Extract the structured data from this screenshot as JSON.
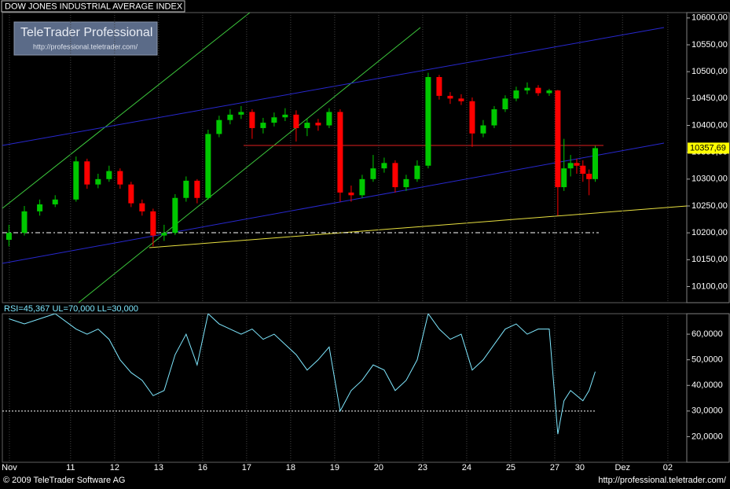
{
  "header": {
    "title": "DOW JONES INDUSTRIAL AVERAGE INDEX"
  },
  "branding": {
    "name": "TeleTrader Professional",
    "url": "http://professional.teletrader.com/"
  },
  "footer": {
    "copyright": "© 2009 TeleTrader Software AG",
    "url": "http://professional.teletrader.com/"
  },
  "chart_data": [
    {
      "type": "candlestick",
      "up_color": "#00c800",
      "down_color": "#ff0000",
      "x": [
        -0.4,
        -0.05,
        0.3,
        0.65,
        1.125,
        1.375,
        1.625,
        1.875,
        2.125,
        2.375,
        2.625,
        2.875,
        3.125,
        3.375,
        3.625,
        3.875,
        4.125,
        4.375,
        4.625,
        4.875,
        5.125,
        5.375,
        5.625,
        5.875,
        6.125,
        6.375,
        6.625,
        6.875,
        7.125,
        7.375,
        7.625,
        7.875,
        8.125,
        8.375,
        8.625,
        8.875,
        9.125,
        9.375,
        9.625,
        9.875,
        10.125,
        10.375,
        10.625,
        10.875,
        11.125,
        11.375,
        11.625,
        11.875,
        12.07,
        12.21,
        12.36,
        12.5,
        12.64,
        12.78,
        12.92
      ],
      "open": [
        10187,
        10200,
        10240,
        10253,
        10262,
        10333,
        10290,
        10300,
        10315,
        10290,
        10255,
        10240,
        10195,
        10200,
        10265,
        10297,
        10265,
        10384,
        10410,
        10420,
        10425,
        10395,
        10405,
        10415,
        10420,
        10395,
        10405,
        10400,
        10425,
        10275,
        10270,
        10300,
        10320,
        10330,
        10285,
        10300,
        10325,
        10490,
        10455,
        10450,
        10445,
        10385,
        10400,
        10430,
        10450,
        10465,
        10470,
        10460,
        10465,
        10285,
        10320,
        10330,
        10325,
        10310,
        10300
      ],
      "high": [
        10215,
        10250,
        10262,
        10270,
        10342,
        10338,
        10310,
        10325,
        10320,
        10295,
        10262,
        10245,
        10215,
        10272,
        10305,
        10300,
        10392,
        10418,
        10430,
        10436,
        10430,
        10414,
        10424,
        10432,
        10428,
        10412,
        10412,
        10432,
        10430,
        10288,
        10308,
        10345,
        10340,
        10335,
        10308,
        10335,
        10498,
        10494,
        10462,
        10458,
        10452,
        10410,
        10436,
        10456,
        10472,
        10480,
        10475,
        10468,
        10466,
        10375,
        10345,
        10338,
        10335,
        10318,
        10362
      ],
      "low": [
        10175,
        10195,
        10232,
        10248,
        10258,
        10282,
        10283,
        10295,
        10282,
        10248,
        10232,
        10175,
        10185,
        10196,
        10258,
        10255,
        10262,
        10378,
        10402,
        10412,
        10375,
        10385,
        10398,
        10408,
        10370,
        10380,
        10390,
        10395,
        10258,
        10258,
        10265,
        10295,
        10312,
        10275,
        10278,
        10295,
        10320,
        10448,
        10440,
        10438,
        10360,
        10378,
        10395,
        10425,
        10445,
        10458,
        10455,
        10455,
        10232,
        10278,
        10305,
        10310,
        10295,
        10270,
        10295
      ],
      "close": [
        10200,
        10240,
        10253,
        10262,
        10333,
        10290,
        10300,
        10315,
        10290,
        10255,
        10240,
        10195,
        10200,
        10265,
        10297,
        10265,
        10384,
        10410,
        10420,
        10425,
        10395,
        10405,
        10415,
        10420,
        10395,
        10405,
        10400,
        10425,
        10275,
        10270,
        10300,
        10320,
        10330,
        10285,
        10300,
        10325,
        10490,
        10455,
        10450,
        10445,
        10385,
        10400,
        10430,
        10450,
        10465,
        10470,
        10460,
        10465,
        10285,
        10320,
        10330,
        10325,
        10310,
        10300,
        10357.69
      ],
      "last_price": {
        "value": 10357.69,
        "label": "10357,69"
      },
      "xlim": [
        -0.55,
        15
      ],
      "ylim": [
        10070,
        10610
      ],
      "yticks": [
        {
          "value": 10100,
          "label": "10100,00"
        },
        {
          "value": 10150,
          "label": "10150,00"
        },
        {
          "value": 10200,
          "label": "10200,00"
        },
        {
          "value": 10250,
          "label": "10250,00"
        },
        {
          "value": 10300,
          "label": "10300,00"
        },
        {
          "value": 10350,
          "label": "10350,00"
        },
        {
          "value": 10400,
          "label": "10400,00"
        },
        {
          "value": 10450,
          "label": "10450,00"
        },
        {
          "value": 10500,
          "label": "10500,00"
        },
        {
          "value": 10550,
          "label": "10550,00"
        },
        {
          "value": 10600,
          "label": "10600,00"
        }
      ]
    },
    {
      "type": "line",
      "title": "RSI=45,367 UL=70,000 LL=30,000",
      "color": "#7fe8ff",
      "x": [
        -0.4,
        -0.05,
        0.3,
        0.65,
        1.125,
        1.375,
        1.625,
        1.875,
        2.125,
        2.375,
        2.625,
        2.875,
        3.125,
        3.375,
        3.625,
        3.875,
        4.125,
        4.375,
        4.625,
        4.875,
        5.125,
        5.375,
        5.625,
        5.875,
        6.125,
        6.375,
        6.625,
        6.875,
        7.125,
        7.375,
        7.625,
        7.875,
        8.125,
        8.375,
        8.625,
        8.875,
        9.125,
        9.375,
        9.625,
        9.875,
        10.125,
        10.375,
        10.625,
        10.875,
        11.125,
        11.375,
        11.625,
        11.875,
        12.07,
        12.21,
        12.36,
        12.5,
        12.64,
        12.78,
        12.92
      ],
      "values": [
        66,
        64,
        66,
        68,
        62,
        60,
        62,
        58,
        50,
        45,
        42,
        36,
        38,
        52,
        60,
        48,
        68,
        64,
        62,
        60,
        62,
        58,
        60,
        56,
        52,
        46,
        50,
        55,
        30,
        38,
        42,
        48,
        46,
        38,
        42,
        50,
        68,
        62,
        58,
        60,
        46,
        50,
        56,
        62,
        64,
        60,
        62,
        62,
        21,
        34,
        38,
        36,
        34,
        38,
        45.367
      ],
      "lower_limit": 30,
      "xlim": [
        -0.55,
        15
      ],
      "ylim": [
        10,
        68
      ],
      "yticks": [
        {
          "value": 20,
          "label": "20,0000"
        },
        {
          "value": 30,
          "label": "30,0000"
        },
        {
          "value": 40,
          "label": "40,0000"
        },
        {
          "value": 50,
          "label": "50,0000"
        },
        {
          "value": 60,
          "label": "60,0000"
        }
      ],
      "xticks": [
        {
          "value": -0.39,
          "label": "Nov"
        },
        {
          "value": 1,
          "label": "11"
        },
        {
          "value": 2,
          "label": "12"
        },
        {
          "value": 3,
          "label": "13"
        },
        {
          "value": 4,
          "label": "16"
        },
        {
          "value": 5,
          "label": "17"
        },
        {
          "value": 6,
          "label": "18"
        },
        {
          "value": 7,
          "label": "19"
        },
        {
          "value": 8,
          "label": "20"
        },
        {
          "value": 9,
          "label": "23"
        },
        {
          "value": 10,
          "label": "24"
        },
        {
          "value": 11,
          "label": "25"
        },
        {
          "value": 12,
          "label": "27"
        },
        {
          "value": 12.57,
          "label": "30"
        },
        {
          "value": 13.54,
          "label": "Dez"
        },
        {
          "value": 14.57,
          "label": "02"
        }
      ]
    }
  ]
}
